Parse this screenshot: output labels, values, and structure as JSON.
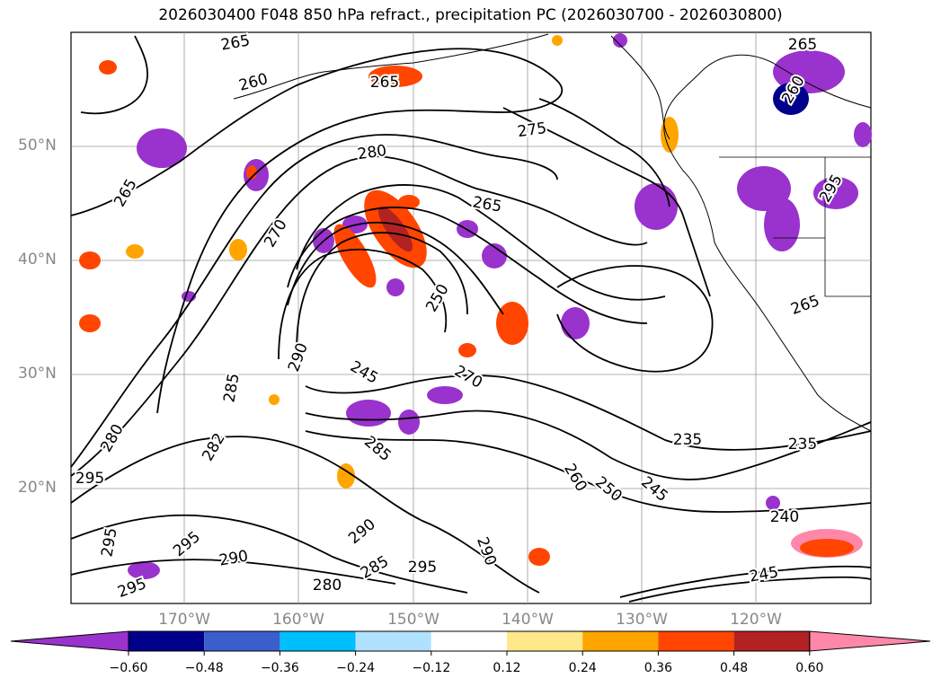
{
  "title": "2026030400 F048 850 hPa refract., precipitation PC (2026030700 - 2026030800)",
  "lat_labels": [
    "50°N",
    "40°N",
    "30°N",
    "20°N"
  ],
  "lon_labels": [
    "170°W",
    "160°W",
    "150°W",
    "140°W",
    "130°W",
    "120°W"
  ],
  "contour_labels": [
    "265",
    "260",
    "265",
    "275",
    "280",
    "265",
    "265",
    "270",
    "250",
    "265",
    "245",
    "270",
    "290",
    "285",
    "280",
    "282",
    "285",
    "295",
    "235",
    "235",
    "260",
    "250",
    "245",
    "240",
    "295",
    "290",
    "290",
    "295",
    "280",
    "285",
    "295",
    "290",
    "295",
    "295",
    "260",
    "265",
    "245"
  ],
  "colorbar": {
    "ticks": [
      "−0.60",
      "−0.48",
      "−0.36",
      "−0.24",
      "−0.12",
      "0.12",
      "0.24",
      "0.36",
      "0.48",
      "0.60"
    ],
    "colors": [
      "#9a32cd",
      "#00008b",
      "#3a5fcd",
      "#00bfff",
      "#b0e2ff",
      "#ffffff",
      "#ffe88a",
      "#ffa500",
      "#ff4500",
      "#b22222",
      "#ff88aa"
    ]
  },
  "precip_patches": [
    {
      "c": "#3a5fcd"
    },
    {
      "c": "#9a32cd"
    },
    {
      "c": "#00bfff"
    },
    {
      "c": "#ff4500"
    },
    {
      "c": "#ffa500"
    },
    {
      "c": "#b22222"
    },
    {
      "c": "#ff88aa"
    },
    {
      "c": "#00008b"
    }
  ]
}
